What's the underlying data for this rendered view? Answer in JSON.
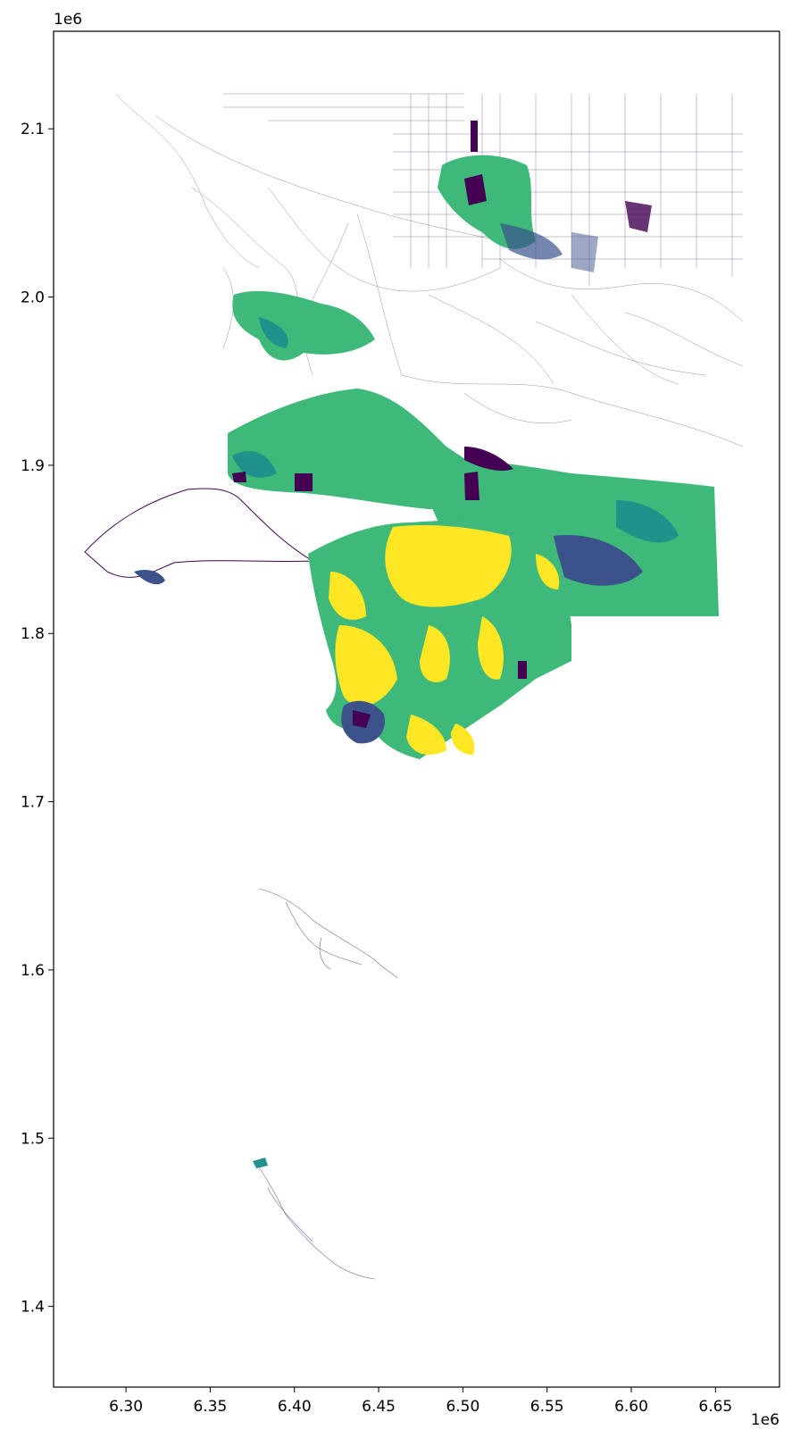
{
  "chart_data": {
    "type": "map",
    "title": "",
    "xlabel": "",
    "ylabel": "",
    "x_offset_label": "1e6",
    "y_offset_label": "1e6",
    "xlim": [
      6.257,
      6.688
    ],
    "ylim": [
      1.352,
      2.158
    ],
    "x_ticks": [
      {
        "value": 6.3,
        "label": "6.30"
      },
      {
        "value": 6.35,
        "label": "6.35"
      },
      {
        "value": 6.4,
        "label": "6.40"
      },
      {
        "value": 6.45,
        "label": "6.45"
      },
      {
        "value": 6.5,
        "label": "6.50"
      },
      {
        "value": 6.55,
        "label": "6.55"
      },
      {
        "value": 6.6,
        "label": "6.60"
      },
      {
        "value": 6.65,
        "label": "6.65"
      }
    ],
    "y_ticks": [
      {
        "value": 1.4,
        "label": "1.4"
      },
      {
        "value": 1.5,
        "label": "1.5"
      },
      {
        "value": 1.6,
        "label": "1.6"
      },
      {
        "value": 1.7,
        "label": "1.7"
      },
      {
        "value": 1.8,
        "label": "1.8"
      },
      {
        "value": 1.9,
        "label": "1.9"
      },
      {
        "value": 2.0,
        "label": "2.0"
      },
      {
        "value": 2.1,
        "label": "2.1"
      }
    ],
    "colormap": "viridis",
    "colors": {
      "dark": "#440154",
      "blue": "#3b528b",
      "teal": "#21918c",
      "green": "#5ec962",
      "mid_green": "#3fb97a",
      "yellow": "#fde725",
      "line": "#4a2a6a"
    },
    "grid": false,
    "legend": "none"
  }
}
